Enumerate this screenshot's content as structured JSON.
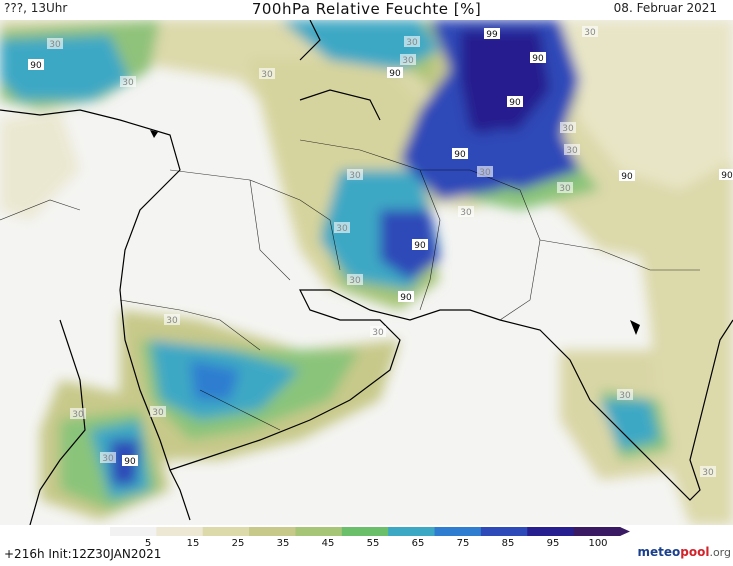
{
  "header": {
    "left": "???, 13Uhr",
    "title": "700hPa Relative Feuchte [%]",
    "date": "08. Februar 2021"
  },
  "footer": {
    "run": "+216h Init:12Z30JAN2021",
    "logo_part1": "meteo",
    "logo_part2": "pool",
    "logo_part3": ".org"
  },
  "legend": {
    "ticks": [
      "5",
      "15",
      "25",
      "35",
      "45",
      "55",
      "65",
      "75",
      "85",
      "95",
      "100"
    ],
    "colors": [
      "#f2f2f2",
      "#ece8d4",
      "#dcd9aa",
      "#c7c98a",
      "#a6c577",
      "#6cbf6a",
      "#3ca8c4",
      "#2e7dd0",
      "#2e49b8",
      "#271f8f",
      "#3a1a63"
    ]
  },
  "contour_labels": [
    "30",
    "90",
    "30",
    "30",
    "30",
    "30",
    "90",
    "90",
    "30",
    "99",
    "90",
    "90",
    "30",
    "90",
    "30",
    "30",
    "90",
    "90",
    "30",
    "30",
    "30",
    "90",
    "30",
    "30",
    "30",
    "30",
    "30",
    "30",
    "30",
    "30",
    "90",
    "30"
  ]
}
